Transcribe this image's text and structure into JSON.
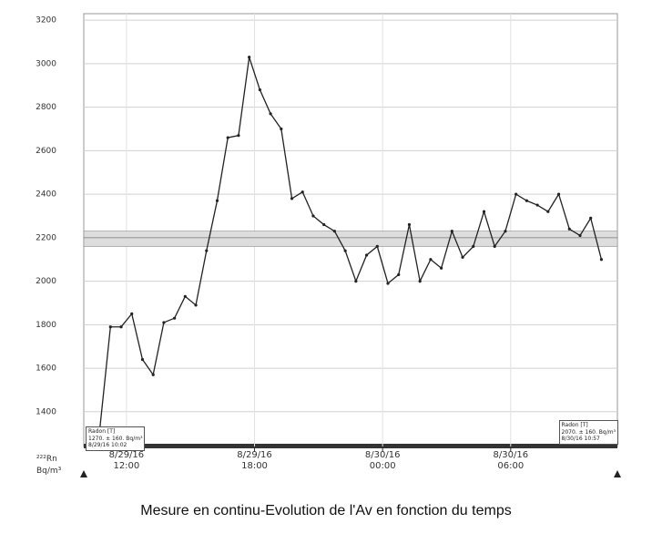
{
  "chart_data": {
    "type": "line",
    "caption": "Mesure en continu-Evolution de l'Av en fonction du temps",
    "ylabel": "²²²Rn Bq/m³",
    "x": [
      "8/29/16 10:45",
      "8/29/16 11:15",
      "8/29/16 11:45",
      "8/29/16 12:15",
      "8/29/16 12:45",
      "8/29/16 13:15",
      "8/29/16 13:45",
      "8/29/16 14:15",
      "8/29/16 14:45",
      "8/29/16 15:15",
      "8/29/16 15:45",
      "8/29/16 16:15",
      "8/29/16 16:45",
      "8/29/16 17:15",
      "8/29/16 17:45",
      "8/29/16 18:15",
      "8/29/16 18:45",
      "8/29/16 19:15",
      "8/29/16 19:45",
      "8/29/16 20:15",
      "8/29/16 20:45",
      "8/29/16 21:15",
      "8/29/16 21:45",
      "8/29/16 22:15",
      "8/29/16 22:45",
      "8/29/16 23:15",
      "8/29/16 23:45",
      "8/30/16 00:15",
      "8/30/16 00:45",
      "8/30/16 01:15",
      "8/30/16 01:45",
      "8/30/16 02:15",
      "8/30/16 02:45",
      "8/30/16 03:15",
      "8/30/16 03:45",
      "8/30/16 04:15",
      "8/30/16 04:45",
      "8/30/16 05:15",
      "8/30/16 05:45",
      "8/30/16 06:15",
      "8/30/16 06:45",
      "8/30/16 07:15",
      "8/30/16 07:45",
      "8/30/16 08:15",
      "8/30/16 08:45",
      "8/30/16 09:15",
      "8/30/16 09:45",
      "8/30/16 10:15"
    ],
    "series": [
      {
        "name": "Radon",
        "color": "#222222",
        "values": [
          1320,
          1790,
          1790,
          1850,
          1640,
          1570,
          1810,
          1830,
          1930,
          1890,
          2140,
          2370,
          2660,
          2670,
          3030,
          2880,
          2770,
          2700,
          2380,
          2410,
          2300,
          2260,
          2230,
          2140,
          2000,
          2120,
          2160,
          1990,
          2030,
          2260,
          2000,
          2100,
          2060,
          2230,
          2110,
          2160,
          2320,
          2160,
          2230,
          2400,
          2370,
          2350,
          2320,
          2400,
          2240,
          2210,
          2290,
          2100
        ]
      }
    ],
    "band": {
      "low": 2160,
      "high": 2230,
      "mean": 2200,
      "color": "#dddddd"
    },
    "xlim": [
      "8/29/16 10:00",
      "8/30/16 11:00"
    ],
    "xticks": [
      "8/29/16 12:00",
      "8/29/16 18:00",
      "8/30/16 00:00",
      "8/30/16 06:00"
    ],
    "ylim": [
      1240,
      3230
    ],
    "yticks": [
      1400,
      1600,
      1800,
      2000,
      2200,
      2400,
      2600,
      2800,
      3000,
      3200
    ],
    "grid": true,
    "annotations": [
      {
        "lines": [
          "Radon [T]",
          "1270. ± 160. Bq/m³",
          "8/29/16 10:02"
        ],
        "corner": "left"
      },
      {
        "lines": [
          "Radon [T]",
          "2070. ± 160. Bq/m³",
          "8/30/16 10:57"
        ],
        "corner": "right"
      }
    ]
  }
}
